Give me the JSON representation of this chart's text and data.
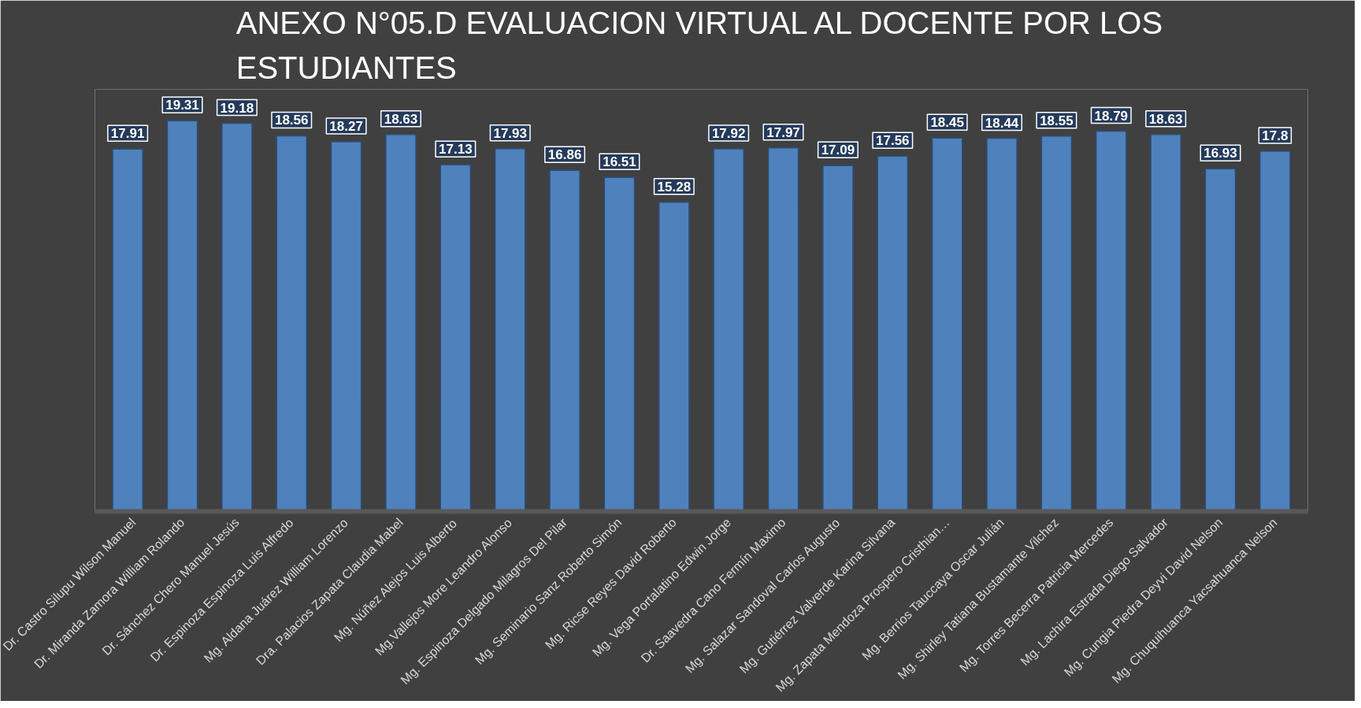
{
  "chart_data": {
    "type": "bar",
    "title": "ANEXO N°05.D EVALUACION VIRTUAL AL DOCENTE POR LOS ESTUDIANTES",
    "categories": [
      "Dr. Castro Silupu Wilson Manuel",
      "Dr. Miranda Zamora William Rolando",
      "Dr. Sánchez Chero Manuel Jesús",
      "Dr. Espinoza Espinoza Luis Alfredo",
      "Mg. Aldana Juárez William Lorenzo",
      "Dra. Palacios Zapata Claudia Mabel",
      "Mg. Núñez Alejos Luis Alberto",
      "Mg.Vallejos More Leandro Alonso",
      "Mg. Espinoza Delgado Milagros Del Pilar",
      "Mg. Seminario Sanz Roberto Simón",
      "Mg. Ricse Reyes David Roberto",
      "Mg. Vega Portalatino Edwin Jorge",
      "Dr. Saavedra Cano Fermín Maximo",
      "Mg. Salazar Sandoval Carlos Augusto",
      "Mg. Gutiérrez Valverde Karina Silvana",
      "Mg. Zapata Mendoza Prospero Cristhian…",
      "Mg. Berrios Tauccaya Oscar Julián",
      "Mg. Shirley Tatiana Bustamante Vilchez",
      "Mg. Torres Becerra Patricia Mercedes",
      "Mg. Lachira Estrada Diego Salvador",
      "Mg. Cungia Piedra Deyvi David Nelson",
      "Mg. Chuquihuanca Yacsahuanca Nelson"
    ],
    "values": [
      17.91,
      19.31,
      19.18,
      18.56,
      18.27,
      18.63,
      17.13,
      17.93,
      16.86,
      16.51,
      15.28,
      17.92,
      17.97,
      17.09,
      17.56,
      18.45,
      18.44,
      18.55,
      18.79,
      18.63,
      16.93,
      17.8
    ],
    "color": "#4f81bd",
    "data_labels": true,
    "grid": false
  }
}
